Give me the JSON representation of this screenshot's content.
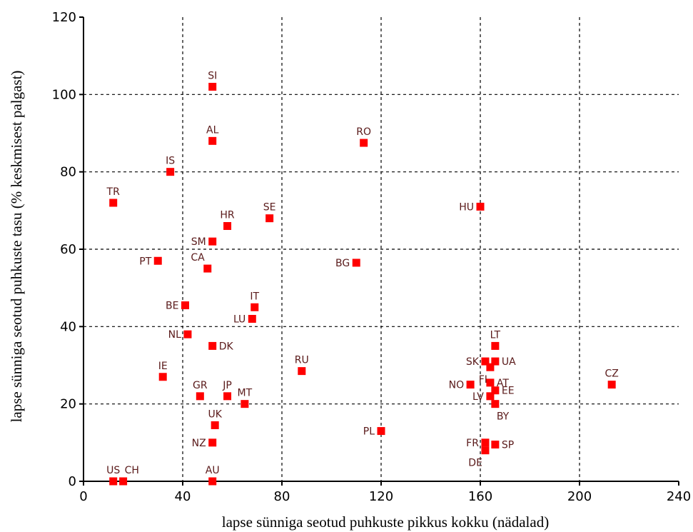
{
  "chart_data": {
    "type": "scatter",
    "title": "",
    "xlabel": "lapse sünniga seotud puhkuste pikkus kokku (nädalad)",
    "ylabel": "lapse sünniga seotud puhkuste tasu (% keskmisest palgast)",
    "xlim": [
      0,
      240
    ],
    "ylim": [
      0,
      120
    ],
    "xticks": [
      0,
      40,
      80,
      120,
      160,
      200,
      240
    ],
    "yticks": [
      0,
      20,
      40,
      60,
      80,
      100,
      120
    ],
    "grid": true,
    "marker_color": "#ff0000",
    "label_color": "#5a1a1a",
    "points": [
      {
        "label": "SI",
        "x": 52,
        "y": 102,
        "pos": "above"
      },
      {
        "label": "AL",
        "x": 52,
        "y": 88,
        "pos": "above"
      },
      {
        "label": "RO",
        "x": 113,
        "y": 87.5,
        "pos": "above"
      },
      {
        "label": "IS",
        "x": 35,
        "y": 80,
        "pos": "above"
      },
      {
        "label": "TR",
        "x": 12,
        "y": 72,
        "pos": "above"
      },
      {
        "label": "HU",
        "x": 160,
        "y": 71,
        "pos": "left"
      },
      {
        "label": "SE",
        "x": 75,
        "y": 68,
        "pos": "above"
      },
      {
        "label": "HR",
        "x": 58,
        "y": 66,
        "pos": "above"
      },
      {
        "label": "SM",
        "x": 52,
        "y": 62,
        "pos": "left"
      },
      {
        "label": "PT",
        "x": 30,
        "y": 57,
        "pos": "left"
      },
      {
        "label": "BG",
        "x": 110,
        "y": 56.5,
        "pos": "left"
      },
      {
        "label": "CA",
        "x": 50,
        "y": 55,
        "pos": "above-left"
      },
      {
        "label": "BE",
        "x": 41,
        "y": 45.5,
        "pos": "left"
      },
      {
        "label": "IT",
        "x": 69,
        "y": 45,
        "pos": "above"
      },
      {
        "label": "LU",
        "x": 68,
        "y": 42,
        "pos": "left"
      },
      {
        "label": "NL",
        "x": 42,
        "y": 38,
        "pos": "left"
      },
      {
        "label": "DK",
        "x": 52,
        "y": 35,
        "pos": "right"
      },
      {
        "label": "LT",
        "x": 166,
        "y": 35,
        "pos": "above"
      },
      {
        "label": "SK",
        "x": 162,
        "y": 31,
        "pos": "left"
      },
      {
        "label": "UA",
        "x": 166,
        "y": 31,
        "pos": "right"
      },
      {
        "label": "FI",
        "x": 164,
        "y": 29.5,
        "pos": "below-left"
      },
      {
        "label": "RU",
        "x": 88,
        "y": 28.5,
        "pos": "above"
      },
      {
        "label": "IE",
        "x": 32,
        "y": 27,
        "pos": "above"
      },
      {
        "label": "AT",
        "x": 164,
        "y": 25.5,
        "pos": "right"
      },
      {
        "label": "CZ",
        "x": 213,
        "y": 25,
        "pos": "above"
      },
      {
        "label": "NO",
        "x": 156,
        "y": 25,
        "pos": "left"
      },
      {
        "label": "EE",
        "x": 166,
        "y": 23.5,
        "pos": "right"
      },
      {
        "label": "GR",
        "x": 47,
        "y": 22,
        "pos": "above"
      },
      {
        "label": "JP",
        "x": 58,
        "y": 22,
        "pos": "above"
      },
      {
        "label": "LV",
        "x": 164,
        "y": 22,
        "pos": "left"
      },
      {
        "label": "MT",
        "x": 65,
        "y": 20,
        "pos": "above"
      },
      {
        "label": "BY",
        "x": 166,
        "y": 20,
        "pos": "below-right"
      },
      {
        "label": "UK",
        "x": 53,
        "y": 14.5,
        "pos": "above"
      },
      {
        "label": "PL",
        "x": 120,
        "y": 13,
        "pos": "left"
      },
      {
        "label": "FR",
        "x": 162,
        "y": 10,
        "pos": "left"
      },
      {
        "label": "SP",
        "x": 166,
        "y": 9.5,
        "pos": "right"
      },
      {
        "label": "NZ",
        "x": 52,
        "y": 10,
        "pos": "left"
      },
      {
        "label": "DE",
        "x": 162,
        "y": 8,
        "pos": "below-left"
      },
      {
        "label": "US",
        "x": 12,
        "y": 0,
        "pos": "above"
      },
      {
        "label": "CH",
        "x": 16,
        "y": 0,
        "pos": "above-right"
      },
      {
        "label": "AU",
        "x": 52,
        "y": 0,
        "pos": "above"
      }
    ]
  }
}
